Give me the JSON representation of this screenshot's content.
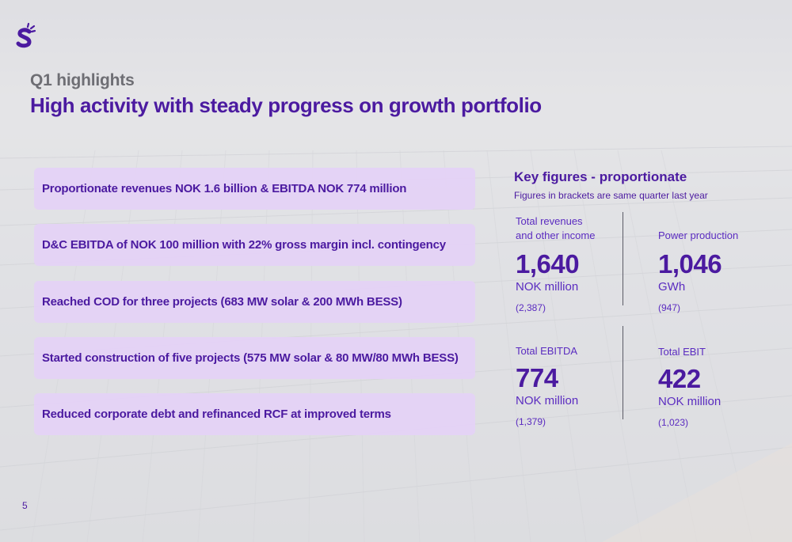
{
  "header": {
    "subtitle": "Q1 highlights",
    "title": "High activity with steady progress on growth portfolio"
  },
  "highlights": [
    "Proportionate revenues NOK 1.6 billion & EBITDA NOK 774 million",
    "D&C EBITDA of NOK 100 million with 22% gross margin incl. contingency",
    "Reached COD for three projects (683 MW solar & 200 MWh BESS)",
    "Started construction of five projects (575 MW solar & 80 MW/80 MWh BESS)",
    "Reduced corporate debt and refinanced RCF at improved terms"
  ],
  "key_figures": {
    "title": "Key figures - proportionate",
    "note": "Figures in brackets are same quarter last year",
    "metrics": [
      {
        "label_line1": "Total revenues",
        "label_line2": "and other income",
        "value": "1,640",
        "unit": "NOK million",
        "previous": "(2,387)"
      },
      {
        "label_line1": "",
        "label_line2": "Power production",
        "value": "1,046",
        "unit": "GWh",
        "previous": "(947)"
      },
      {
        "label_line1": "",
        "label_line2": "Total EBITDA",
        "value": "774",
        "unit": "NOK million",
        "previous": "(1,379)"
      },
      {
        "label_line1": "",
        "label_line2": "Total EBIT",
        "value": "422",
        "unit": "NOK million",
        "previous": "(1,023)"
      }
    ]
  },
  "footer": {
    "page_number": "5"
  },
  "colors": {
    "brand_purple": "#4b1aa0",
    "highlight_bg": "#e4d2f6"
  }
}
